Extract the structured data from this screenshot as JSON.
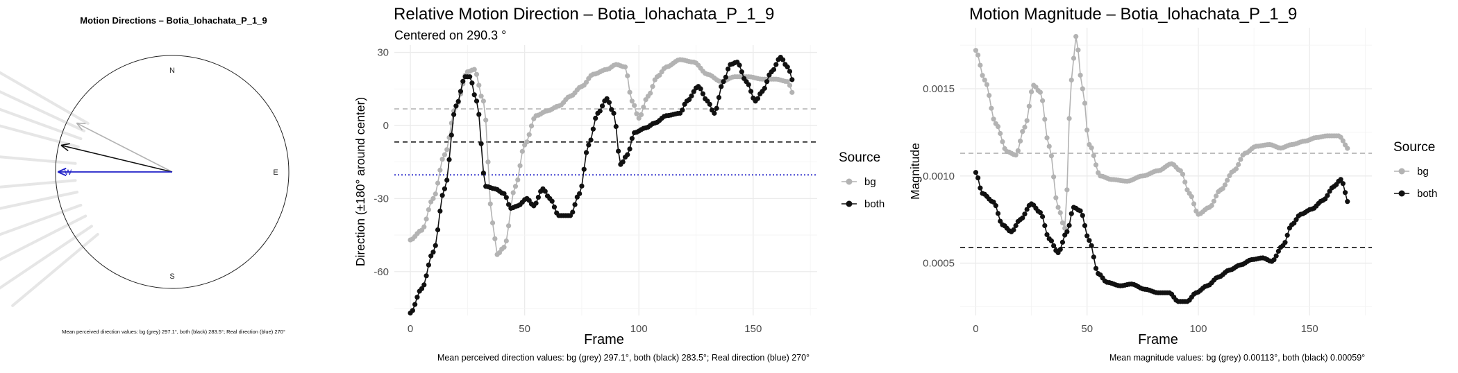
{
  "panel1": {
    "title": "Motion Directions – Botia_lohachata_P_1_9",
    "compass": {
      "N": "N",
      "E": "E",
      "S": "S",
      "W": "W"
    },
    "caption": "Mean perceived direction values: bg (grey) 297.1°, both (black) 283.5°; Real direction (blue) 270°"
  },
  "panel2": {
    "title": "Relative Motion Direction – Botia_lohachata_P_1_9",
    "subtitle": "Centered on  290.3 °",
    "xlabel": "Frame",
    "ylabel": "Direction (±180° around center)",
    "x_ticks": [
      "0",
      "50",
      "100",
      "150"
    ],
    "y_ticks": [
      "30",
      "0",
      "-30",
      "-60"
    ],
    "legend_title": "Source",
    "legend_items": [
      "bg",
      "both"
    ],
    "caption": "Mean perceived direction values: bg (grey) 297.1°, both (black) 283.5°; Real direction (blue) 270°"
  },
  "panel3": {
    "title": "Motion Magnitude – Botia_lohachata_P_1_9",
    "xlabel": "Frame",
    "ylabel": "Magnitude",
    "x_ticks": [
      "0",
      "50",
      "100",
      "150"
    ],
    "y_ticks": [
      "0.0015",
      "0.0010",
      "0.0005"
    ],
    "legend_title": "Source",
    "legend_items": [
      "bg",
      "both"
    ],
    "caption": "Mean magnitude values: bg (grey) 0.00113°, both (black) 0.00059°"
  },
  "colors": {
    "bg": "#b3b3b3",
    "both": "#111111",
    "real": "#1f1fc7"
  },
  "chart_data": [
    {
      "type": "polar",
      "title": "Motion Directions – Botia_lohachata_P_1_9",
      "mean_directions_deg": {
        "bg": 297.1,
        "both": 283.5,
        "real": 270
      },
      "series": [
        {
          "name": "bg",
          "direction_deg": 297.1
        },
        {
          "name": "both",
          "direction_deg": 283.5
        },
        {
          "name": "real",
          "direction_deg": 270
        }
      ]
    },
    {
      "type": "line",
      "title": "Relative Motion Direction – Botia_lohachata_P_1_9",
      "subtitle": "Centered on  290.3 °",
      "xlabel": "Frame",
      "ylabel": "Direction (±180° around center)",
      "xlim": [
        -7,
        178
      ],
      "ylim": [
        -78,
        33
      ],
      "frames": 168,
      "hlines": {
        "bg_mean": 6.8,
        "both_mean": -6.8,
        "real": -20.3
      },
      "series": [
        {
          "name": "bg",
          "knots": [
            [
              0,
              -47
            ],
            [
              5,
              -43
            ],
            [
              10,
              -30
            ],
            [
              15,
              -12
            ],
            [
              20,
              8
            ],
            [
              25,
              22
            ],
            [
              28,
              23
            ],
            [
              32,
              10
            ],
            [
              36,
              -40
            ],
            [
              38,
              -53
            ],
            [
              41,
              -50
            ],
            [
              46,
              -25
            ],
            [
              50,
              -8
            ],
            [
              55,
              4
            ],
            [
              60,
              6
            ],
            [
              65,
              8
            ],
            [
              70,
              12
            ],
            [
              75,
              16
            ],
            [
              80,
              21
            ],
            [
              86,
              23
            ],
            [
              90,
              25
            ],
            [
              94,
              24
            ],
            [
              97,
              10
            ],
            [
              100,
              3
            ],
            [
              104,
              12
            ],
            [
              108,
              20
            ],
            [
              112,
              24
            ],
            [
              118,
              27
            ],
            [
              124,
              26
            ],
            [
              130,
              21
            ],
            [
              136,
              18
            ],
            [
              142,
              20
            ],
            [
              148,
              20
            ],
            [
              154,
              19
            ],
            [
              160,
              19
            ],
            [
              165,
              18
            ],
            [
              168,
              12
            ]
          ]
        },
        {
          "name": "both",
          "knots": [
            [
              0,
              -77
            ],
            [
              5,
              -67
            ],
            [
              10,
              -52
            ],
            [
              15,
              -26
            ],
            [
              20,
              8
            ],
            [
              24,
              20
            ],
            [
              26,
              20
            ],
            [
              29,
              10
            ],
            [
              33,
              -25
            ],
            [
              37,
              -26
            ],
            [
              41,
              -28
            ],
            [
              44,
              -34
            ],
            [
              47,
              -33
            ],
            [
              51,
              -30
            ],
            [
              54,
              -33
            ],
            [
              58,
              -26
            ],
            [
              61,
              -30
            ],
            [
              65,
              -37
            ],
            [
              70,
              -37
            ],
            [
              74,
              -28
            ],
            [
              78,
              -8
            ],
            [
              82,
              5
            ],
            [
              86,
              11
            ],
            [
              89,
              5
            ],
            [
              92,
              -16
            ],
            [
              95,
              -12
            ],
            [
              98,
              -3
            ],
            [
              103,
              -1
            ],
            [
              107,
              1
            ],
            [
              112,
              4
            ],
            [
              118,
              5
            ],
            [
              121,
              10
            ],
            [
              126,
              16
            ],
            [
              130,
              10
            ],
            [
              133,
              5
            ],
            [
              137,
              18
            ],
            [
              140,
              25
            ],
            [
              143,
              26
            ],
            [
              147,
              18
            ],
            [
              151,
              10
            ],
            [
              154,
              14
            ],
            [
              158,
              22
            ],
            [
              162,
              28
            ],
            [
              165,
              24
            ],
            [
              168,
              17
            ]
          ]
        }
      ]
    },
    {
      "type": "line",
      "title": "Motion Magnitude – Botia_lohachata_P_1_9",
      "xlabel": "Frame",
      "ylabel": "Magnitude",
      "xlim": [
        -7,
        178
      ],
      "ylim": [
        0.0002,
        0.00185
      ],
      "frames": 168,
      "hlines": {
        "bg_mean": 0.00113,
        "both_mean": 0.00059
      },
      "series": [
        {
          "name": "bg",
          "knots": [
            [
              0,
              0.00172
            ],
            [
              4,
              0.00155
            ],
            [
              9,
              0.0013
            ],
            [
              14,
              0.00114
            ],
            [
              18,
              0.00112
            ],
            [
              22,
              0.00128
            ],
            [
              26,
              0.00152
            ],
            [
              29,
              0.00148
            ],
            [
              33,
              0.00117
            ],
            [
              37,
              0.00082
            ],
            [
              40,
              0.0007
            ],
            [
              43,
              0.00155
            ],
            [
              45,
              0.0018
            ],
            [
              48,
              0.0015
            ],
            [
              51,
              0.00118
            ],
            [
              56,
              0.001
            ],
            [
              61,
              0.00098
            ],
            [
              68,
              0.00097
            ],
            [
              75,
              0.001
            ],
            [
              82,
              0.00103
            ],
            [
              88,
              0.00107
            ],
            [
              92,
              0.00103
            ],
            [
              96,
              0.0009
            ],
            [
              100,
              0.00078
            ],
            [
              105,
              0.00082
            ],
            [
              110,
              0.00092
            ],
            [
              116,
              0.00103
            ],
            [
              121,
              0.00113
            ],
            [
              126,
              0.00117
            ],
            [
              132,
              0.00118
            ],
            [
              137,
              0.00116
            ],
            [
              142,
              0.00118
            ],
            [
              148,
              0.0012
            ],
            [
              153,
              0.00122
            ],
            [
              158,
              0.00123
            ],
            [
              163,
              0.00123
            ],
            [
              168,
              0.00115
            ]
          ]
        },
        {
          "name": "both",
          "knots": [
            [
              0,
              0.00102
            ],
            [
              3,
              0.0009
            ],
            [
              8,
              0.00085
            ],
            [
              12,
              0.00072
            ],
            [
              16,
              0.00068
            ],
            [
              20,
              0.00075
            ],
            [
              25,
              0.00084
            ],
            [
              29,
              0.00079
            ],
            [
              33,
              0.00064
            ],
            [
              37,
              0.00056
            ],
            [
              41,
              0.00068
            ],
            [
              44,
              0.00082
            ],
            [
              47,
              0.0008
            ],
            [
              51,
              0.00063
            ],
            [
              55,
              0.00044
            ],
            [
              59,
              0.00039
            ],
            [
              65,
              0.00037
            ],
            [
              70,
              0.00038
            ],
            [
              76,
              0.00035
            ],
            [
              82,
              0.00033
            ],
            [
              87,
              0.00033
            ],
            [
              91,
              0.00028
            ],
            [
              95,
              0.00028
            ],
            [
              99,
              0.00033
            ],
            [
              104,
              0.00037
            ],
            [
              109,
              0.00042
            ],
            [
              114,
              0.00046
            ],
            [
              119,
              0.00049
            ],
            [
              124,
              0.00052
            ],
            [
              129,
              0.00053
            ],
            [
              133,
              0.00051
            ],
            [
              138,
              0.0006
            ],
            [
              142,
              0.00072
            ],
            [
              146,
              0.00078
            ],
            [
              151,
              0.00081
            ],
            [
              156,
              0.00086
            ],
            [
              161,
              0.00094
            ],
            [
              164,
              0.00098
            ],
            [
              168,
              0.00083
            ]
          ]
        }
      ]
    }
  ]
}
